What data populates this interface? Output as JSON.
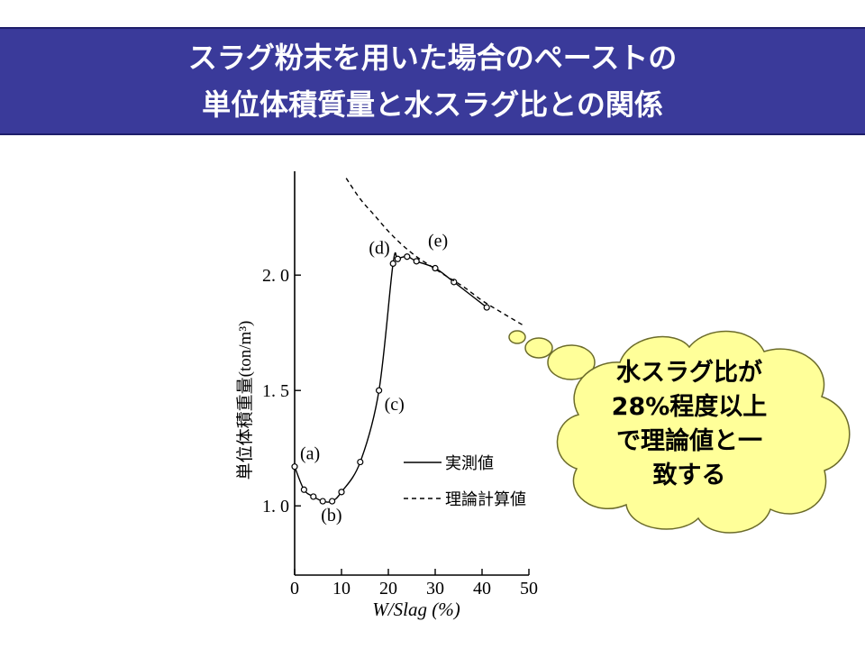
{
  "slide": {
    "title_line1": "スラグ粉末を用いた場合のペーストの",
    "title_line2": "単位体積質量と水スラグ比との関係",
    "title_bg": "#3a3a9a"
  },
  "callout": {
    "lines": [
      "水スラグ比が",
      "28%程度以上",
      "で理論値と一",
      "致する"
    ],
    "fill": "#ffff99"
  },
  "chart_data": {
    "type": "line",
    "xlabel": "W/Slag (%)",
    "ylabel": "単位体積重量(ton/m³)",
    "xlim": [
      0,
      50
    ],
    "ylim": [
      0.7,
      2.45
    ],
    "x_ticks": [
      0,
      10,
      20,
      30,
      40,
      50
    ],
    "x_tick_labels": [
      "0",
      "10",
      "20",
      "30",
      "40",
      "50"
    ],
    "y_ticks": [
      1.0,
      1.5,
      2.0
    ],
    "y_tick_labels": [
      "1. 0",
      "1. 5",
      "2. 0"
    ],
    "legend": {
      "position": "center-right",
      "entries": [
        {
          "label": "実測値",
          "style": "solid"
        },
        {
          "label": "理論計算値",
          "style": "dashed"
        }
      ]
    },
    "series": [
      {
        "name": "実測値",
        "style": "solid",
        "markers": true,
        "x": [
          0,
          2,
          4,
          6,
          8,
          10,
          14,
          18,
          21,
          22,
          24,
          26,
          30,
          34,
          41
        ],
        "y": [
          1.17,
          1.07,
          1.04,
          1.02,
          1.02,
          1.06,
          1.19,
          1.5,
          2.05,
          2.07,
          2.08,
          2.06,
          2.03,
          1.97,
          1.86
        ]
      },
      {
        "name": "理論計算値",
        "style": "dashed",
        "markers": false,
        "x": [
          11,
          14,
          17,
          20,
          23,
          26,
          29,
          32,
          36,
          40,
          44,
          49
        ],
        "y": [
          2.42,
          2.33,
          2.26,
          2.19,
          2.13,
          2.08,
          2.04,
          2.0,
          1.95,
          1.89,
          1.84,
          1.78
        ]
      }
    ],
    "annotations": [
      {
        "label": "(a)",
        "x": 0,
        "y": 1.17
      },
      {
        "label": "(b)",
        "x": 6,
        "y": 1.02
      },
      {
        "label": "(c)",
        "x": 18,
        "y": 1.5
      },
      {
        "label": "(d)",
        "x": 22,
        "y": 2.07
      },
      {
        "label": "(e)",
        "x": 30,
        "y": 2.03
      }
    ]
  }
}
